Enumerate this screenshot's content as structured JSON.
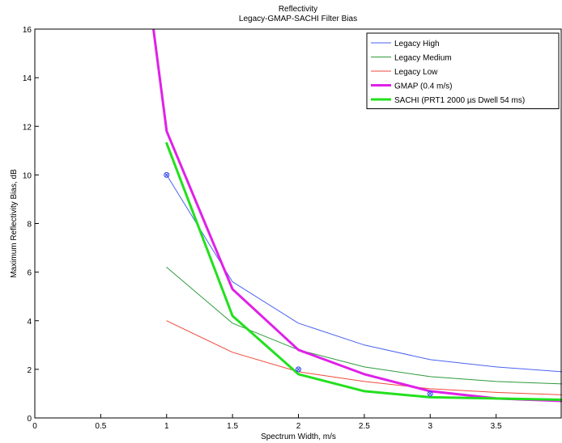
{
  "chart_data": {
    "type": "line",
    "title": "Reflectivity",
    "subtitle": "Legacy-GMAP-SACHI Filter Bias",
    "xlabel": "Spectrum Width, m/s",
    "ylabel": "Maximum Reflectivity Bias, dB",
    "xlim": [
      0,
      4
    ],
    "ylim": [
      0,
      16
    ],
    "xticks": [
      "0",
      "0.5",
      "1",
      "1.5",
      "2",
      "2.5",
      "3",
      "3.5"
    ],
    "yticks": [
      "0",
      "2",
      "4",
      "6",
      "8",
      "10",
      "12",
      "14",
      "16"
    ],
    "grid": false,
    "legend_position": "top-right",
    "series": [
      {
        "name": "Legacy High",
        "color": "#4a63f0",
        "width": 1,
        "x": [
          1,
          1.5,
          2,
          2.5,
          3,
          3.5,
          4
        ],
        "y": [
          10.0,
          5.6,
          3.9,
          3.0,
          2.4,
          2.1,
          1.9
        ]
      },
      {
        "name": "Legacy Medium",
        "color": "#2e9a3c",
        "width": 1,
        "x": [
          1,
          1.5,
          2,
          2.5,
          3,
          3.5,
          4
        ],
        "y": [
          6.2,
          3.9,
          2.8,
          2.1,
          1.7,
          1.5,
          1.4
        ]
      },
      {
        "name": "Legacy Low",
        "color": "#ee4a3a",
        "width": 1,
        "x": [
          1,
          1.5,
          2,
          2.5,
          3,
          3.5,
          4
        ],
        "y": [
          4.0,
          2.7,
          1.9,
          1.5,
          1.2,
          1.05,
          0.95
        ]
      },
      {
        "name": "GMAP (0.4 m/s)",
        "color": "#e020e8",
        "width": 3,
        "x": [
          0.9,
          1,
          1.5,
          2,
          2.5,
          3,
          3.5,
          4
        ],
        "y": [
          16,
          11.8,
          5.3,
          2.8,
          1.8,
          1.1,
          0.8,
          0.7
        ]
      },
      {
        "name": "SACHI (PRT1 2000 µs Dwell 54 ms)",
        "color": "#22e01e",
        "width": 3,
        "x": [
          1,
          1.5,
          2,
          2.5,
          3,
          3.5,
          4
        ],
        "y": [
          11.3,
          4.2,
          1.8,
          1.1,
          0.85,
          0.8,
          0.75
        ]
      }
    ],
    "markers": [
      {
        "x": 1,
        "y": 10.0,
        "color": "#3344ee"
      },
      {
        "x": 2,
        "y": 2.0,
        "color": "#3344ee"
      },
      {
        "x": 3,
        "y": 1.0,
        "color": "#3344ee"
      }
    ]
  }
}
